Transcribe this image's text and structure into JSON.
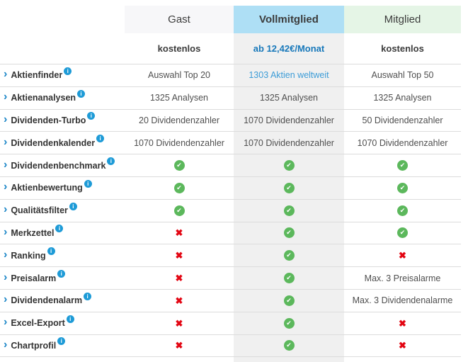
{
  "columns": [
    {
      "id": "gast",
      "label": "Gast",
      "price": "kostenlos"
    },
    {
      "id": "vollmitglied",
      "label": "Vollmitglied",
      "price": "ab 12,42€/Monat",
      "highlighted": true
    },
    {
      "id": "mitglied",
      "label": "Mitglied",
      "price": "kostenlos"
    }
  ],
  "rows": [
    {
      "feature": "Aktienfinder",
      "cells": [
        {
          "type": "text",
          "value": "Auswahl Top 20"
        },
        {
          "type": "link",
          "value": "1303 Aktien weltweit"
        },
        {
          "type": "text",
          "value": "Auswahl Top 50"
        }
      ]
    },
    {
      "feature": "Aktienanalysen",
      "cells": [
        {
          "type": "text",
          "value": "1325 Analysen"
        },
        {
          "type": "text",
          "value": "1325 Analysen"
        },
        {
          "type": "text",
          "value": "1325 Analysen"
        }
      ]
    },
    {
      "feature": "Dividenden-Turbo",
      "cells": [
        {
          "type": "text",
          "value": "20 Dividendenzahler"
        },
        {
          "type": "text",
          "value": "1070 Dividendenzahler"
        },
        {
          "type": "text",
          "value": "50 Dividendenzahler"
        }
      ]
    },
    {
      "feature": "Dividendenkalender",
      "cells": [
        {
          "type": "text",
          "value": "1070 Dividendenzahler"
        },
        {
          "type": "text",
          "value": "1070 Dividendenzahler"
        },
        {
          "type": "text",
          "value": "1070 Dividendenzahler"
        }
      ]
    },
    {
      "feature": "Dividendenbenchmark",
      "cells": [
        {
          "type": "check"
        },
        {
          "type": "check"
        },
        {
          "type": "check"
        }
      ]
    },
    {
      "feature": "Aktienbewertung",
      "cells": [
        {
          "type": "check"
        },
        {
          "type": "check"
        },
        {
          "type": "check"
        }
      ]
    },
    {
      "feature": "Qualitätsfilter",
      "cells": [
        {
          "type": "check"
        },
        {
          "type": "check"
        },
        {
          "type": "check"
        }
      ]
    },
    {
      "feature": "Merkzettel",
      "cells": [
        {
          "type": "cross"
        },
        {
          "type": "check"
        },
        {
          "type": "check"
        }
      ]
    },
    {
      "feature": "Ranking",
      "cells": [
        {
          "type": "cross"
        },
        {
          "type": "check"
        },
        {
          "type": "cross"
        }
      ]
    },
    {
      "feature": "Preisalarm",
      "cells": [
        {
          "type": "cross"
        },
        {
          "type": "check"
        },
        {
          "type": "text",
          "value": "Max. 3 Preisalarme"
        }
      ]
    },
    {
      "feature": "Dividendenalarm",
      "cells": [
        {
          "type": "cross"
        },
        {
          "type": "check"
        },
        {
          "type": "text",
          "value": "Max. 3 Dividendenalarme"
        }
      ]
    },
    {
      "feature": "Excel-Export",
      "cells": [
        {
          "type": "cross"
        },
        {
          "type": "check"
        },
        {
          "type": "cross"
        }
      ]
    },
    {
      "feature": "Chartprofil",
      "cells": [
        {
          "type": "cross"
        },
        {
          "type": "check"
        },
        {
          "type": "cross"
        }
      ]
    }
  ],
  "icons": {
    "chevron_right": "›",
    "info": "i",
    "check": "✔",
    "cross": "✖"
  },
  "colors": {
    "header_gast_bg": "#f7f7f9",
    "header_voll_bg": "#aedff5",
    "header_mitglied_bg": "#e5f5e6",
    "header_text": "#3c3c3c",
    "column_voll_bg": "#f0f0f0",
    "accent_blue": "#1d87c8",
    "info_blue": "#1e9bd7",
    "price_blue": "#1778ba",
    "link_blue": "#3c9cd7",
    "check_green": "#5cb85c",
    "cross_red": "#e30613",
    "border": "#dcdcdc"
  }
}
